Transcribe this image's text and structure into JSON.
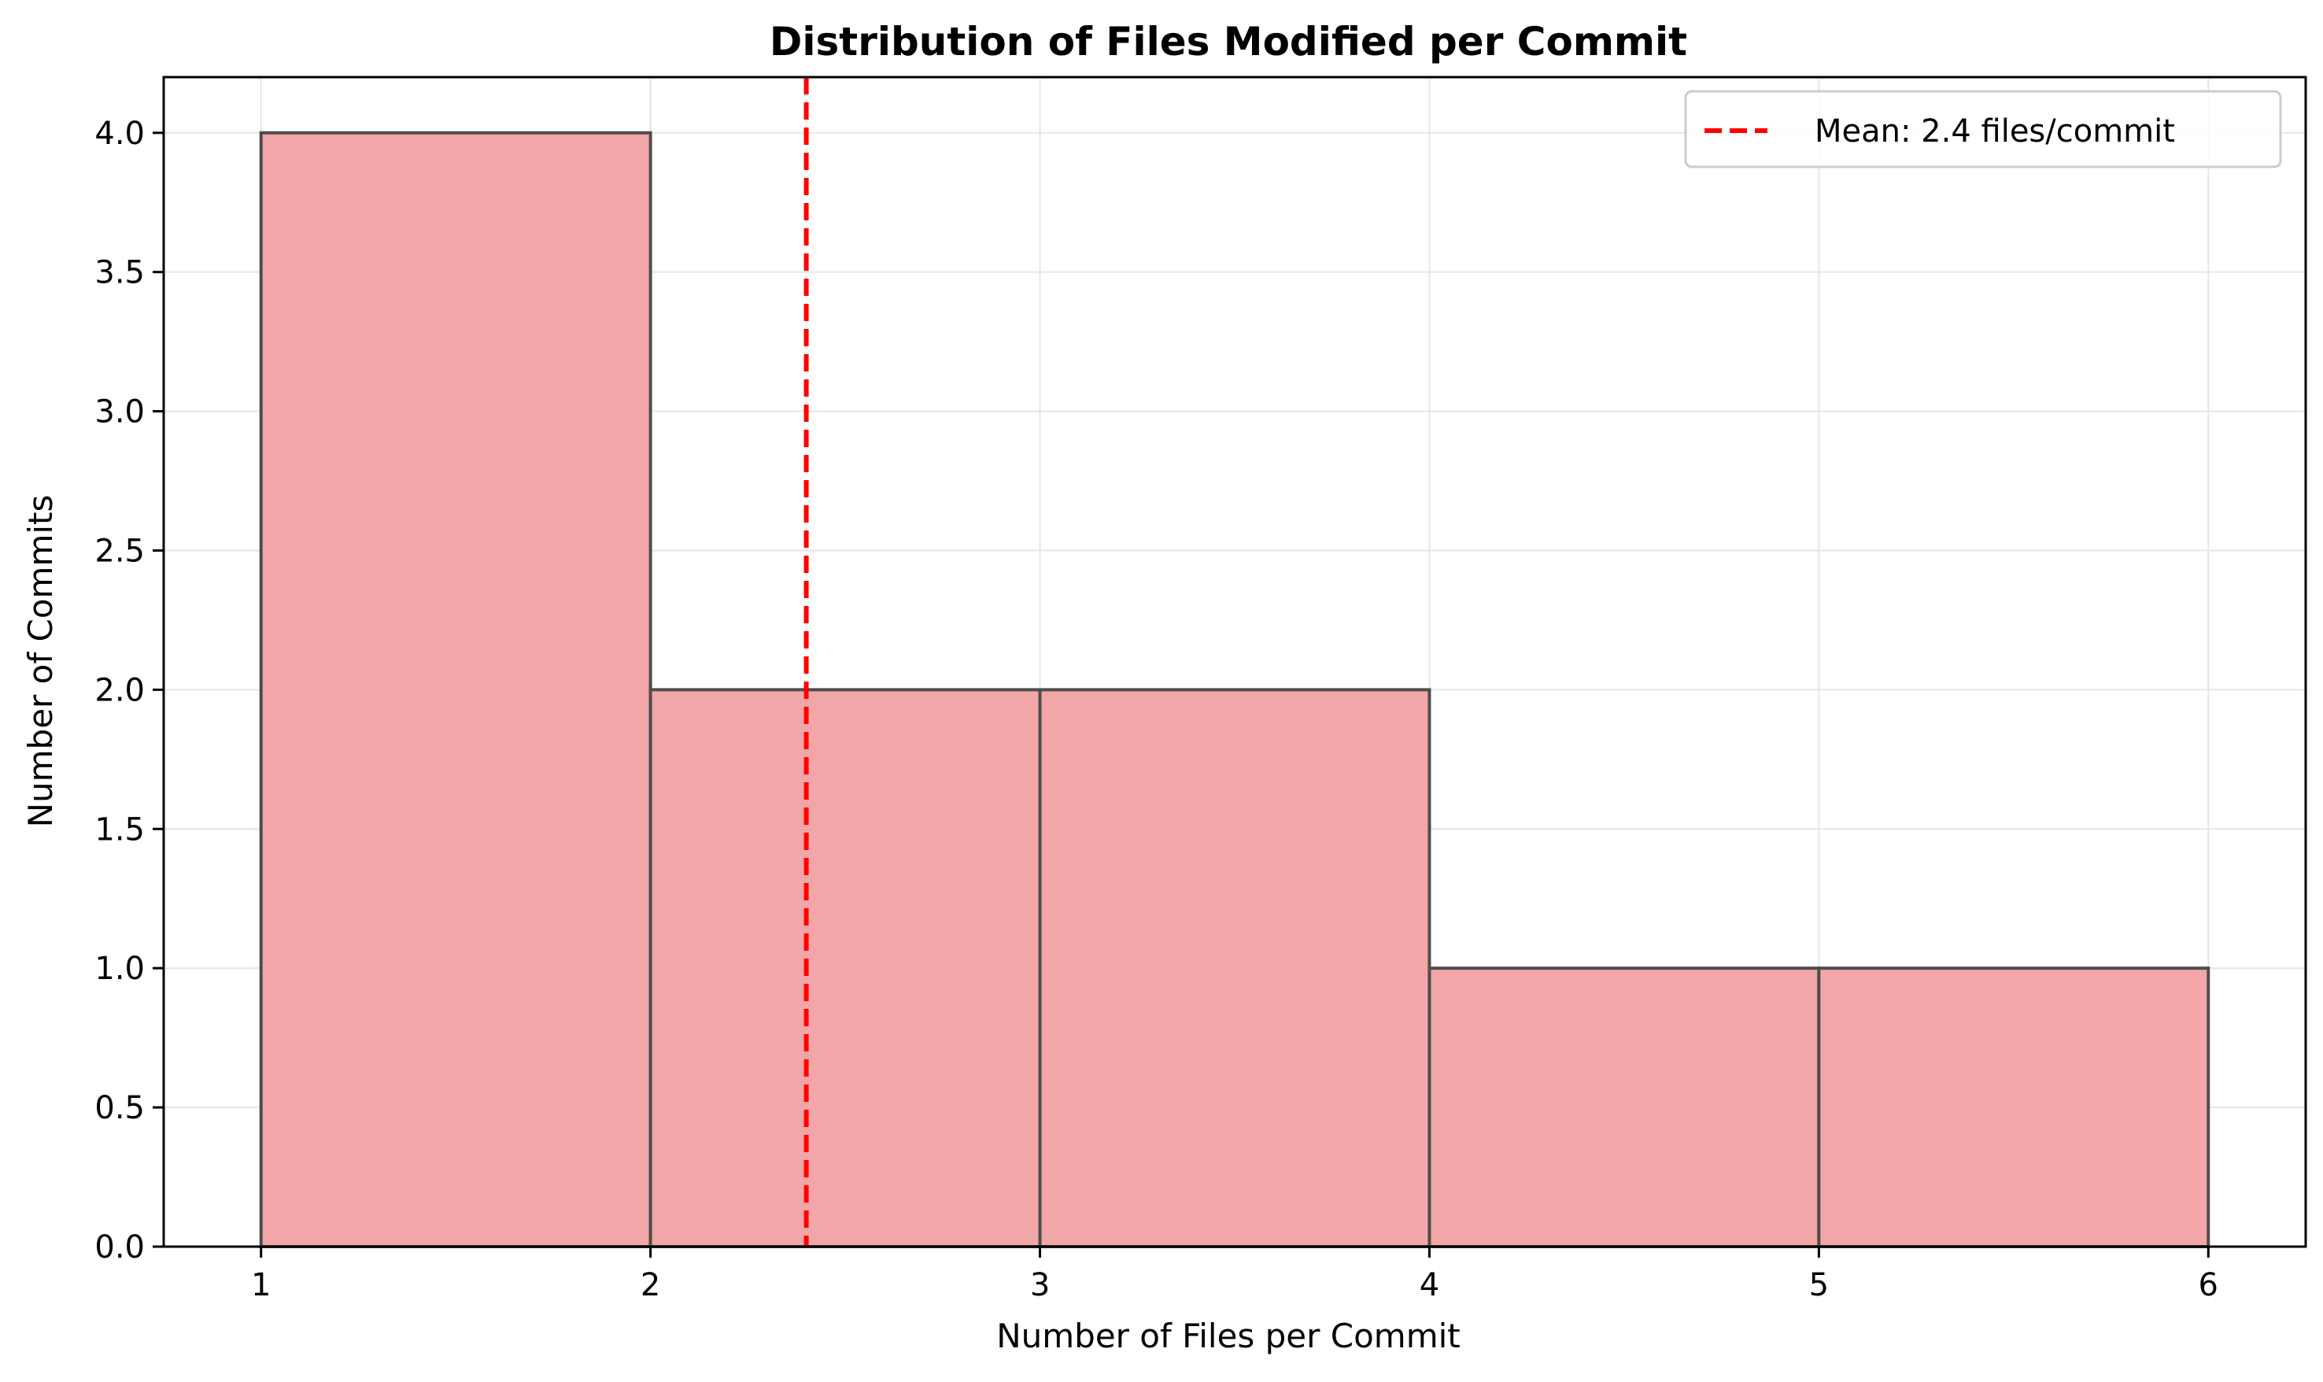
{
  "chart_data": {
    "type": "bar",
    "title": "Distribution of Files Modified per Commit",
    "xlabel": "Number of Files per Commit",
    "ylabel": "Number of Commits",
    "xlim": [
      0.75,
      6.25
    ],
    "ylim": [
      0,
      4.2
    ],
    "x_ticks": [
      1,
      2,
      3,
      4,
      5,
      6
    ],
    "x_tick_labels": [
      "1",
      "2",
      "3",
      "4",
      "5",
      "6"
    ],
    "y_ticks": [
      0.0,
      0.5,
      1.0,
      1.5,
      2.0,
      2.5,
      3.0,
      3.5,
      4.0
    ],
    "y_tick_labels": [
      "0.0",
      "0.5",
      "1.0",
      "1.5",
      "2.0",
      "2.5",
      "3.0",
      "3.5",
      "4.0"
    ],
    "bins": [
      {
        "start": 1,
        "end": 2,
        "count": 4
      },
      {
        "start": 2,
        "end": 3,
        "count": 2
      },
      {
        "start": 3,
        "end": 4,
        "count": 2
      },
      {
        "start": 4,
        "end": 5,
        "count": 1
      },
      {
        "start": 5,
        "end": 6,
        "count": 1
      }
    ],
    "mean_line": {
      "value": 2.4,
      "label": "Mean: 2.4 files/commit",
      "color": "#ff0000",
      "style": "dashed"
    },
    "grid": true,
    "legend_position": "top-right",
    "colors": {
      "bar_fill": "#f2a6a7",
      "bar_edge": "#4d4d4d",
      "grid": "#e6e6e6",
      "axis": "#000000"
    }
  }
}
